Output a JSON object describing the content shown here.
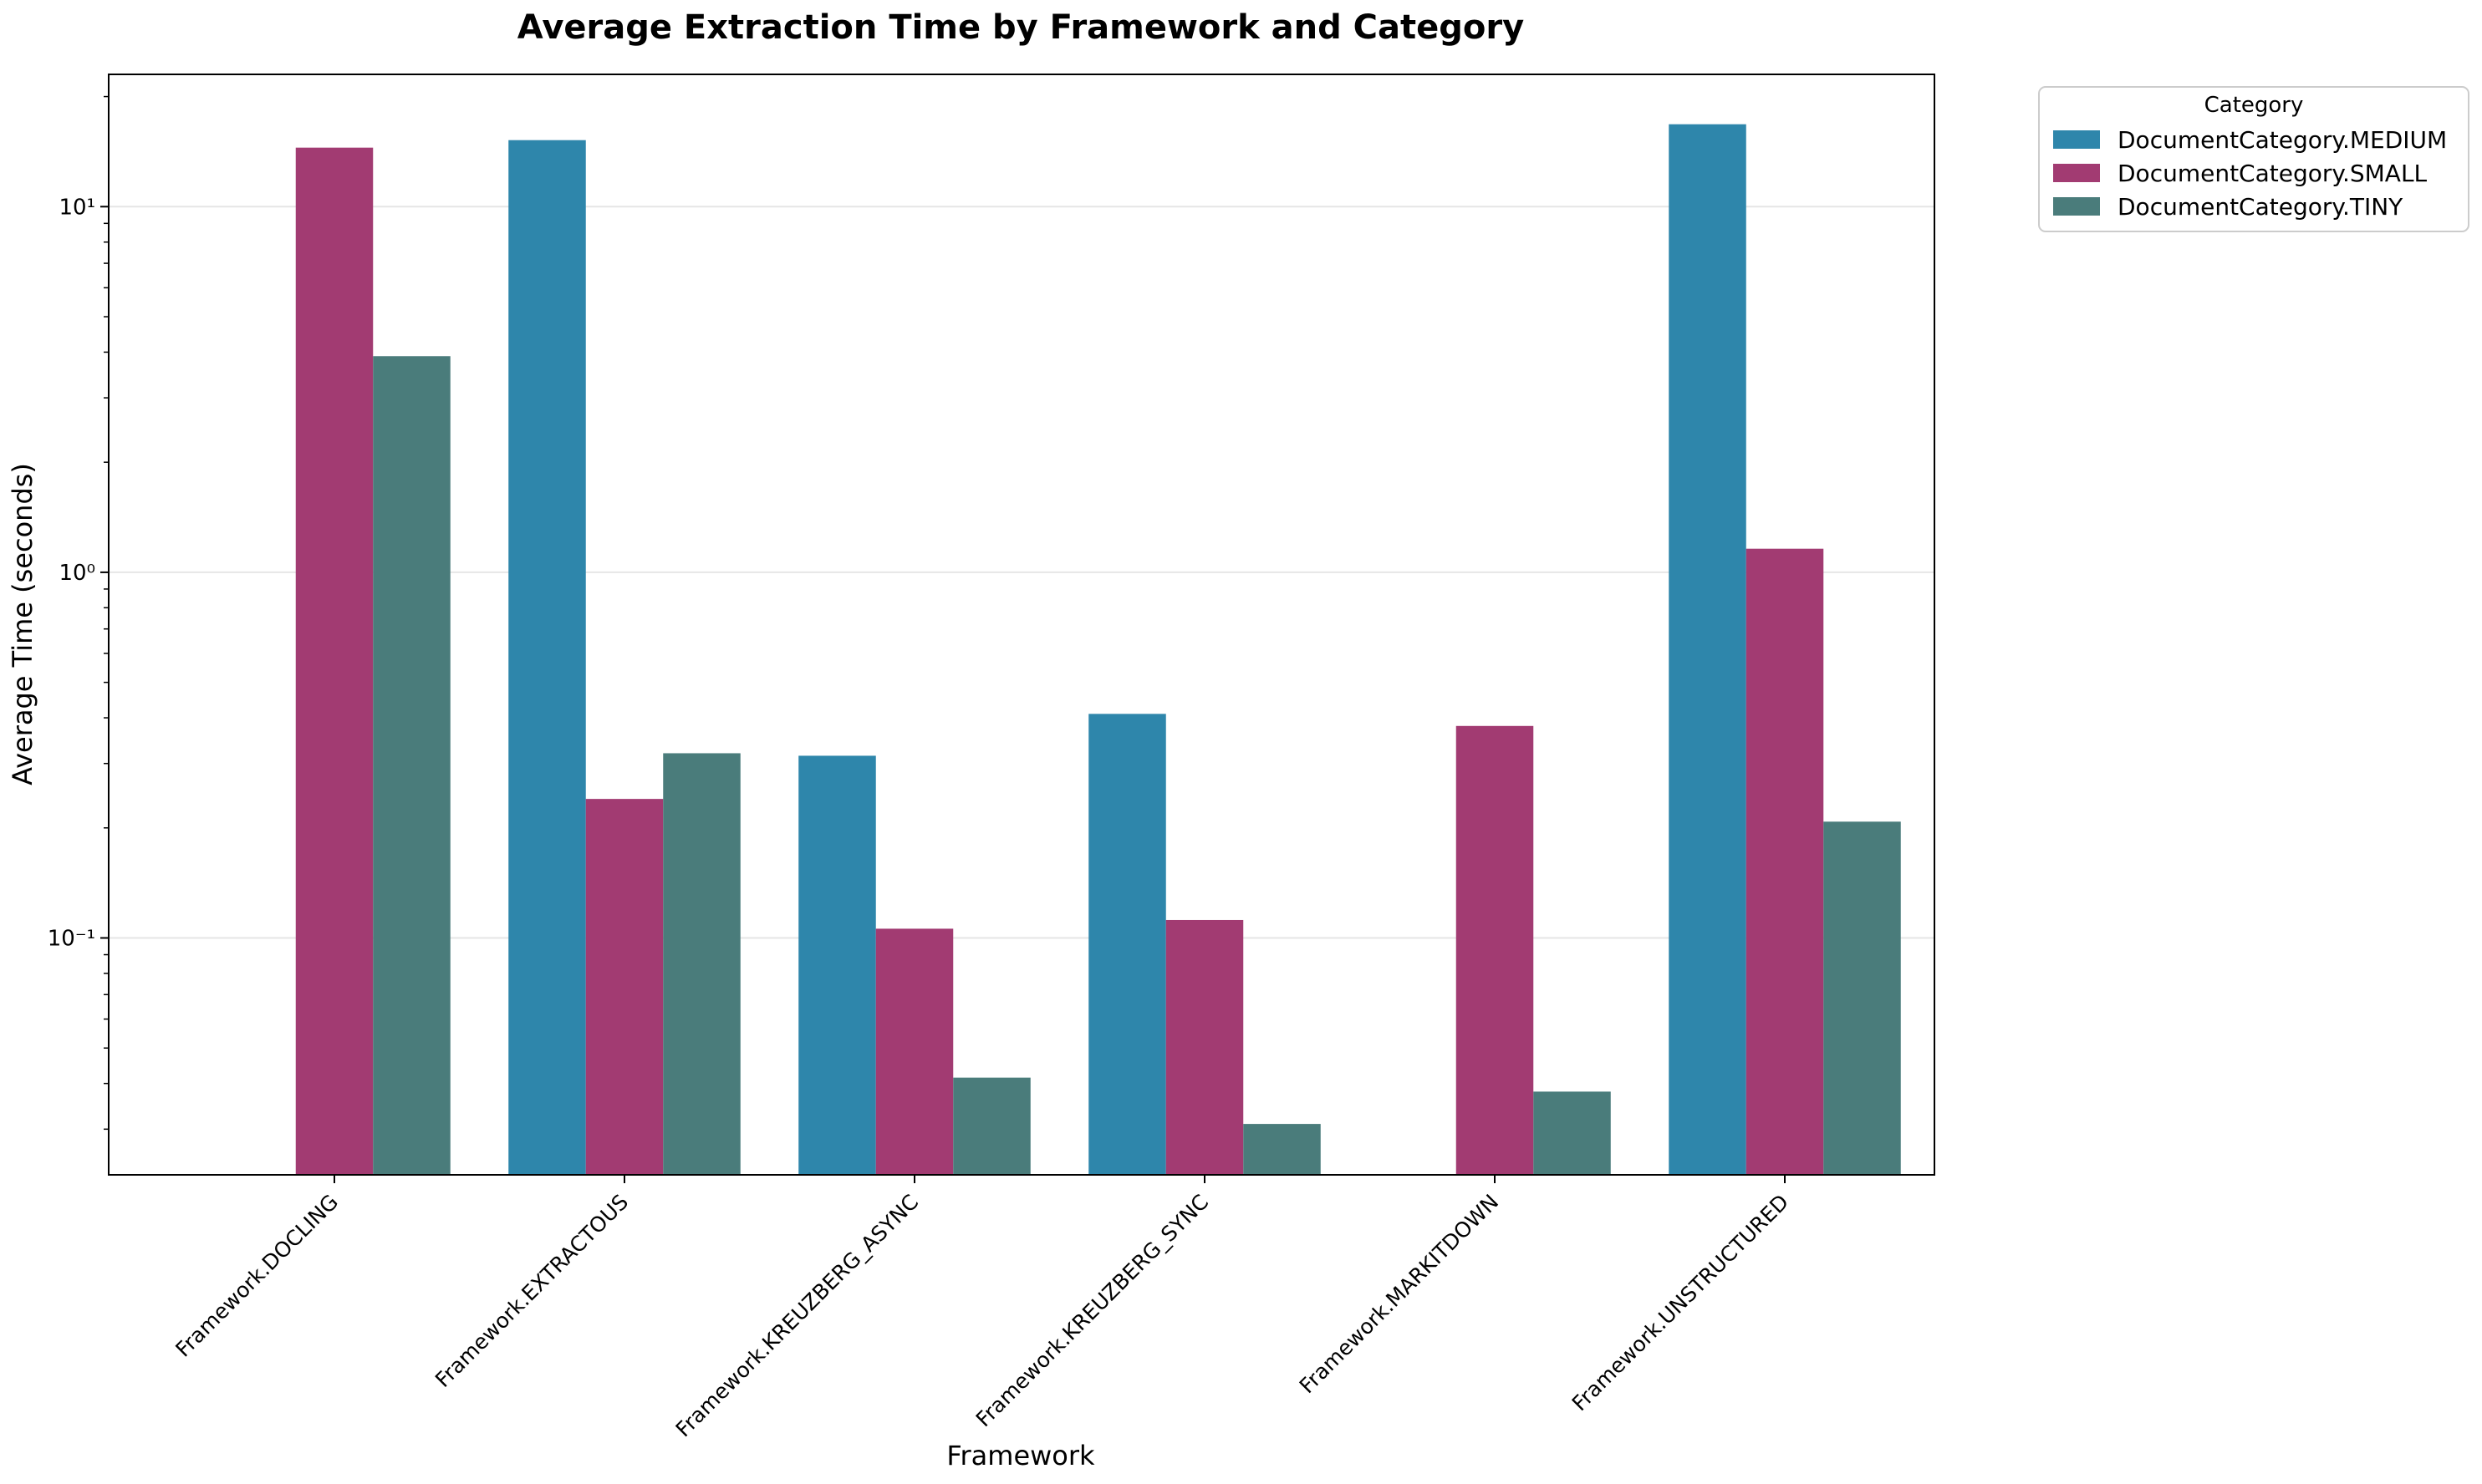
{
  "chart_data": {
    "type": "bar",
    "title": "Average Extraction Time by Framework and Category",
    "xlabel": "Framework",
    "ylabel": "Average Time (seconds)",
    "yscale": "log",
    "ylim": [
      0.0225,
      23
    ],
    "grid": true,
    "categories": [
      "Framework.DOCLING",
      "Framework.EXTRACTOUS",
      "Framework.KREUZBERG_ASYNC",
      "Framework.KREUZBERG_SYNC",
      "Framework.MARKITDOWN",
      "Framework.UNSTRUCTURED"
    ],
    "series": [
      {
        "name": "DocumentCategory.MEDIUM",
        "color": "#2e86ab",
        "values": [
          null,
          15.2,
          0.315,
          0.41,
          null,
          16.8
        ]
      },
      {
        "name": "DocumentCategory.SMALL",
        "color": "#a23b72",
        "values": [
          14.5,
          0.24,
          0.106,
          0.112,
          0.38,
          1.16
        ]
      },
      {
        "name": "DocumentCategory.TINY",
        "color": "#4a7c7b",
        "values": [
          3.9,
          0.32,
          0.0415,
          0.031,
          0.038,
          0.208
        ]
      }
    ],
    "yticks": [
      {
        "value": 0.1,
        "label": "10⁻¹"
      },
      {
        "value": 1,
        "label": "10⁰"
      },
      {
        "value": 10,
        "label": "10¹"
      }
    ],
    "legend": {
      "title": "Category",
      "position": "upper-right-outside"
    }
  }
}
